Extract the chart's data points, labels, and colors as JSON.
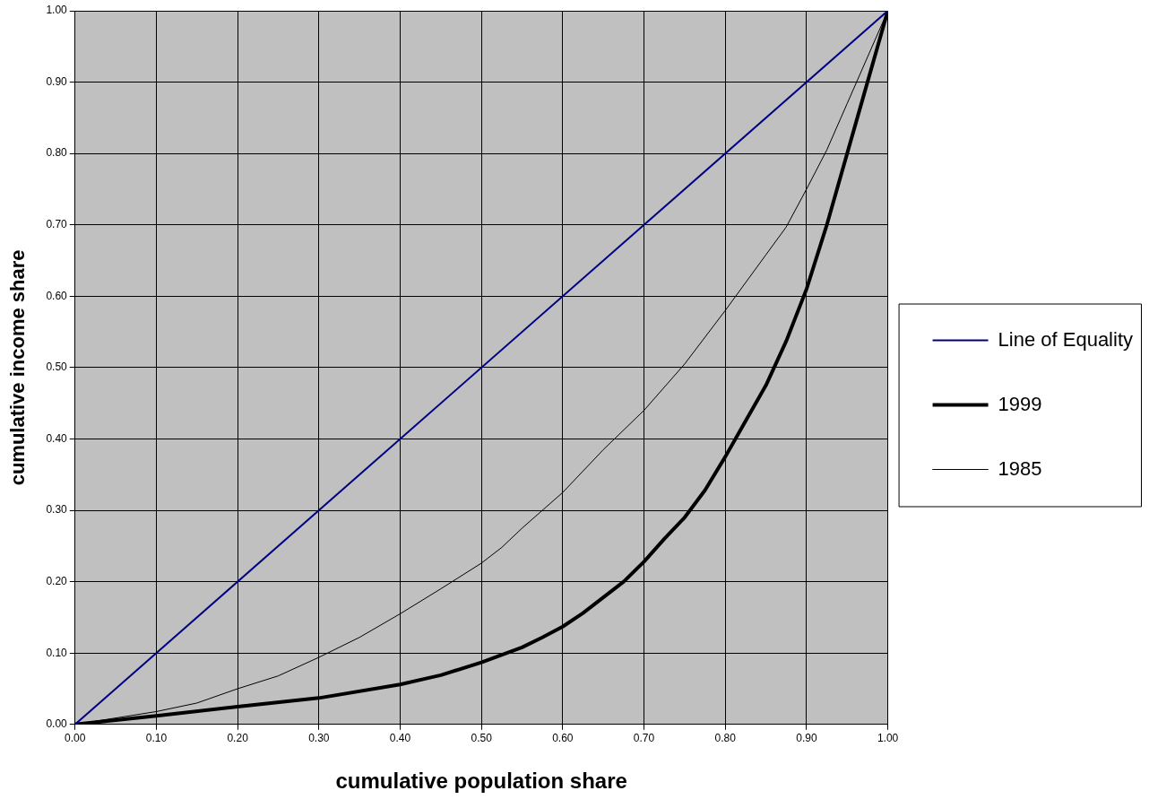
{
  "chart_data": {
    "type": "line",
    "xlabel": "cumulative population share",
    "ylabel": "cumulative income share",
    "xlim": [
      0,
      1
    ],
    "ylim": [
      0,
      1
    ],
    "xticks": [
      {
        "value": 0,
        "label": "0.00"
      },
      {
        "value": 0.1,
        "label": "0.10"
      },
      {
        "value": 0.2,
        "label": "0.20"
      },
      {
        "value": 0.3,
        "label": "0.30"
      },
      {
        "value": 0.4,
        "label": "0.40"
      },
      {
        "value": 0.5,
        "label": "0.50"
      },
      {
        "value": 0.6,
        "label": "0.60"
      },
      {
        "value": 0.7,
        "label": "0.70"
      },
      {
        "value": 0.8,
        "label": "0.80"
      },
      {
        "value": 0.9,
        "label": "0.90"
      },
      {
        "value": 1,
        "label": "1.00"
      }
    ],
    "yticks": [
      {
        "value": 0,
        "label": "0.00"
      },
      {
        "value": 0.1,
        "label": "0.10"
      },
      {
        "value": 0.2,
        "label": "0.20"
      },
      {
        "value": 0.3,
        "label": "0.30"
      },
      {
        "value": 0.4,
        "label": "0.40"
      },
      {
        "value": 0.5,
        "label": "0.50"
      },
      {
        "value": 0.6,
        "label": "0.60"
      },
      {
        "value": 0.7,
        "label": "0.70"
      },
      {
        "value": 0.8,
        "label": "0.80"
      },
      {
        "value": 0.9,
        "label": "0.90"
      },
      {
        "value": 1,
        "label": "1.00"
      }
    ],
    "grid": true,
    "legend": "right",
    "marker": "none",
    "line_style": "solid",
    "series": [
      {
        "name": "Line of Equality",
        "color": "#000080",
        "x": [
          0,
          1
        ],
        "values": [
          0,
          1
        ]
      },
      {
        "name": "1999",
        "color": "#000000",
        "x": [
          0,
          0.1,
          0.2,
          0.3,
          0.4,
          0.45,
          0.5,
          0.55,
          0.575,
          0.6,
          0.625,
          0.65,
          0.675,
          0.7,
          0.725,
          0.75,
          0.775,
          0.8,
          0.825,
          0.85,
          0.875,
          0.9,
          0.925,
          0.95,
          0.975,
          1
        ],
        "values": [
          0,
          0.012,
          0.025,
          0.037,
          0.056,
          0.069,
          0.087,
          0.108,
          0.122,
          0.137,
          0.156,
          0.178,
          0.2,
          0.228,
          0.26,
          0.29,
          0.328,
          0.375,
          0.425,
          0.475,
          0.537,
          0.61,
          0.7,
          0.8,
          0.9,
          1
        ]
      },
      {
        "name": "1985",
        "color": "#000000",
        "x": [
          0,
          0.1,
          0.15,
          0.2,
          0.25,
          0.3,
          0.35,
          0.4,
          0.45,
          0.5,
          0.525,
          0.55,
          0.6,
          0.65,
          0.7,
          0.75,
          0.8,
          0.85,
          0.875,
          0.9,
          0.925,
          0.95,
          0.975,
          1
        ],
        "values": [
          0,
          0.018,
          0.03,
          0.05,
          0.068,
          0.094,
          0.122,
          0.155,
          0.19,
          0.226,
          0.248,
          0.275,
          0.325,
          0.385,
          0.44,
          0.505,
          0.58,
          0.658,
          0.697,
          0.75,
          0.805,
          0.87,
          0.935,
          1
        ]
      }
    ]
  }
}
